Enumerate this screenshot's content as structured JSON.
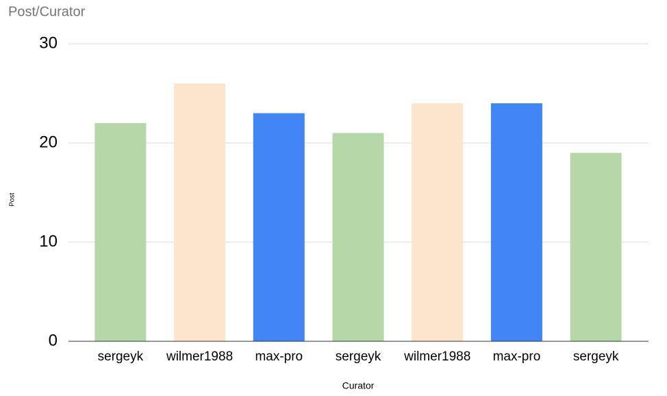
{
  "chart_data": {
    "type": "bar",
    "title": "Post/Curator",
    "x_label": "Curator",
    "y_label": "Post",
    "categories": [
      "sergeyk",
      "wilmer1988",
      "max-pro",
      "sergeyk",
      "wilmer1988",
      "max-pro",
      "sergeyk"
    ],
    "values": [
      22,
      26,
      23,
      21,
      24,
      24,
      19
    ],
    "colors": [
      "#b6d7a8",
      "#fce5cd",
      "#4285f4",
      "#b6d7a8",
      "#fce5cd",
      "#4285f4",
      "#b6d7a8"
    ],
    "ylim": [
      0,
      30
    ],
    "yticks": [
      0,
      10,
      20,
      30
    ],
    "grid": true
  }
}
